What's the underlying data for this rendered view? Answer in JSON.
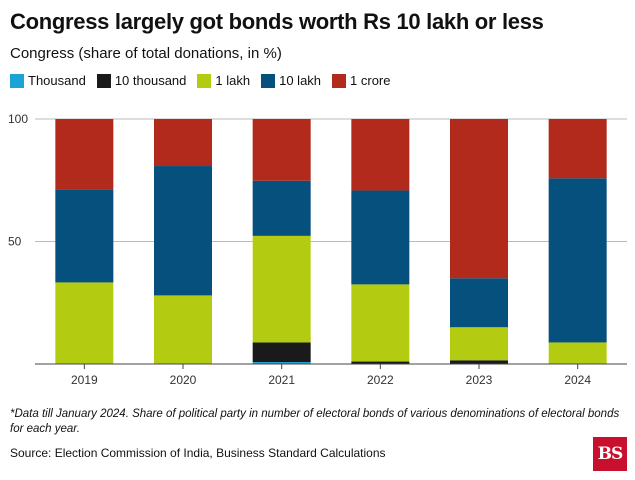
{
  "title": "Congress largely got bonds worth Rs 10 lakh or less",
  "subtitle": "Congress (share of total donations, in %)",
  "footnote": "*Data till January 2024. Share of political party in number of electoral bonds of various denominations of electoral bonds for each year.",
  "source": "Source: Election Commission of India, Business Standard Calculations",
  "logo_text": "BS",
  "colors": {
    "Thousand": "#1ba3d6",
    "10 thousand": "#1a1a1a",
    "1 lakh": "#b3cc12",
    "10 lakh": "#05507c",
    "1 crore": "#b12a1b",
    "grid": "#bbbbbb",
    "axis": "#444444"
  },
  "chart_data": {
    "type": "bar",
    "stacked": true,
    "title": "Congress largely got bonds worth Rs 10 lakh or less",
    "ylabel": "Congress (share of total donations, in %)",
    "xlabel": "",
    "ylim": [
      0,
      100
    ],
    "yticks": [
      50,
      100
    ],
    "categories": [
      "2019",
      "2020",
      "2021",
      "2022",
      "2023",
      "2024"
    ],
    "legend": [
      "Thousand",
      "10 thousand",
      "1 lakh",
      "10 lakh",
      "1 crore"
    ],
    "series": [
      {
        "name": "Thousand",
        "values": [
          0.0,
          0.0,
          0.8,
          0.0,
          0.0,
          0.0
        ]
      },
      {
        "name": "10 thousand",
        "values": [
          0.0,
          0.0,
          8.0,
          1.0,
          1.5,
          0.0
        ]
      },
      {
        "name": "1 lakh",
        "values": [
          33.3,
          28.0,
          43.5,
          31.5,
          13.5,
          8.8
        ]
      },
      {
        "name": "10 lakh",
        "values": [
          38.0,
          52.8,
          22.5,
          38.3,
          20.0,
          67.0
        ]
      },
      {
        "name": "1 crore",
        "values": [
          28.7,
          19.2,
          25.2,
          29.2,
          65.0,
          24.2
        ]
      }
    ]
  }
}
